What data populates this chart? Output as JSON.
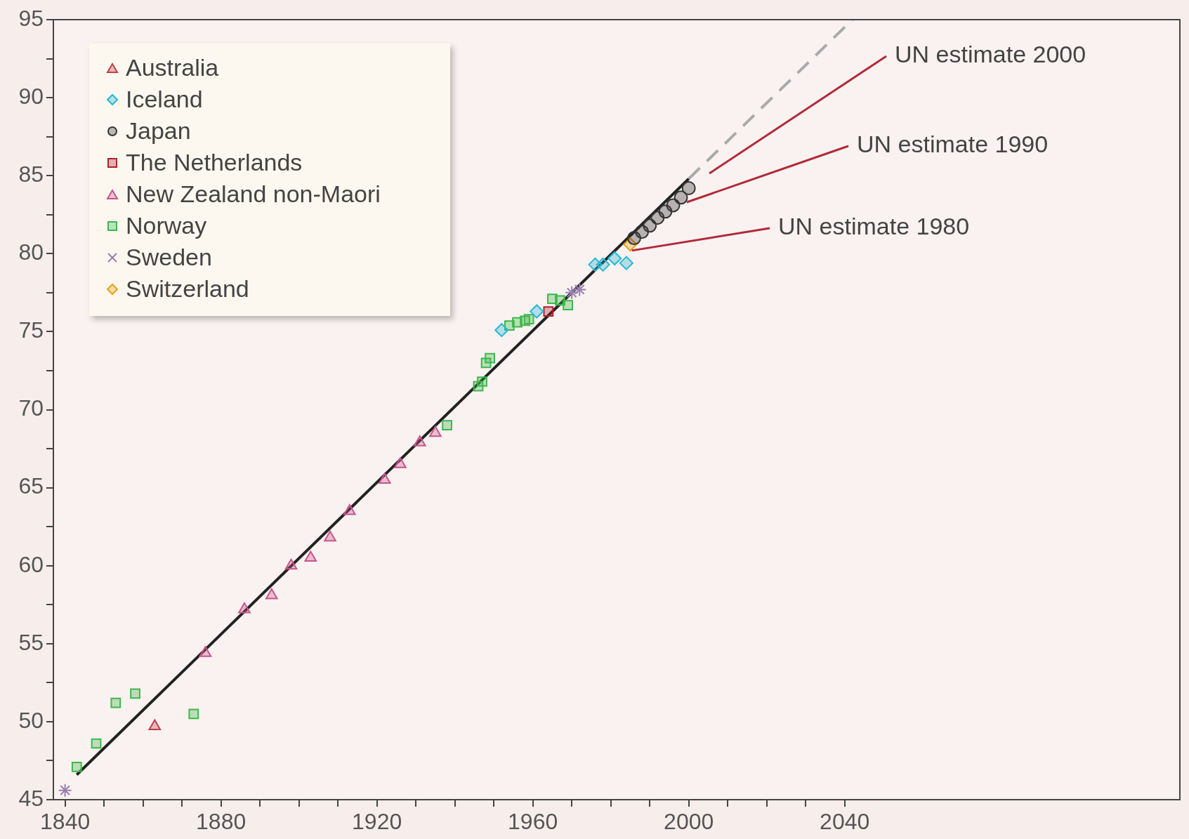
{
  "chart_data": {
    "type": "scatter",
    "xlim": [
      1837,
      2126
    ],
    "ylim": [
      45,
      95
    ],
    "xticks": [
      1840,
      {
        "value": 1850,
        "label": null
      },
      {
        "value": 1860,
        "label": null
      },
      {
        "value": 1870,
        "label": null
      },
      1880,
      {
        "value": 1890,
        "label": null
      },
      {
        "value": 1900,
        "label": null
      },
      {
        "value": 1910,
        "label": null
      },
      1920,
      {
        "value": 1930,
        "label": null
      },
      {
        "value": 1940,
        "label": null
      },
      {
        "value": 1950,
        "label": null
      },
      1960,
      {
        "value": 1970,
        "label": null
      },
      {
        "value": 1980,
        "label": null
      },
      {
        "value": 1990,
        "label": null
      },
      2000,
      {
        "value": 2010,
        "label": null
      },
      {
        "value": 2020,
        "label": null
      },
      {
        "value": 2030,
        "label": null
      },
      2040
    ],
    "yticks": [
      45,
      {
        "value": 47.5,
        "label": null
      },
      50,
      {
        "value": 52.5,
        "label": null
      },
      55,
      {
        "value": 57.5,
        "label": null
      },
      60,
      {
        "value": 62.5,
        "label": null
      },
      65,
      {
        "value": 67.5,
        "label": null
      },
      70,
      {
        "value": 72.5,
        "label": null
      },
      75,
      {
        "value": 77.5,
        "label": null
      },
      80,
      {
        "value": 82.5,
        "label": null
      },
      85,
      {
        "value": 87.5,
        "label": null
      },
      90,
      {
        "value": 92.5,
        "label": null
      },
      95
    ],
    "legend": "top left",
    "series": [
      {
        "name": "Australia",
        "type": "scatter",
        "marker": "triangle",
        "color": "#c0404a",
        "x": [
          1863
        ],
        "values": [
          49.7
        ]
      },
      {
        "name": "Iceland",
        "type": "scatter",
        "marker": "diamond",
        "color": "#29b6d6",
        "x": [
          1952,
          1961,
          1976,
          1978,
          1981,
          1984
        ],
        "values": [
          75.1,
          76.3,
          79.3,
          79.3,
          79.7,
          79.4
        ]
      },
      {
        "name": "Japan",
        "type": "scatter",
        "marker": "circle",
        "color": "#333333",
        "x": [
          1986,
          1988,
          1990,
          1992,
          1994,
          1996,
          1998,
          2000
        ],
        "values": [
          81.0,
          81.4,
          81.8,
          82.3,
          82.7,
          83.1,
          83.6,
          84.2
        ]
      },
      {
        "name": "The Netherlands",
        "type": "scatter",
        "marker": "square",
        "color": "#b0202e",
        "x": [
          1964
        ],
        "values": [
          76.3
        ]
      },
      {
        "name": "New Zealand non-Maori",
        "type": "scatter",
        "marker": "triangle",
        "color": "#c8558a",
        "x": [
          1876,
          1886,
          1893,
          1898,
          1903,
          1908,
          1913,
          1922,
          1926,
          1931,
          1935
        ],
        "values": [
          54.4,
          57.2,
          58.1,
          60.0,
          60.5,
          61.8,
          63.5,
          65.5,
          66.5,
          67.9,
          68.5
        ]
      },
      {
        "name": "Norway",
        "type": "scatter",
        "marker": "square",
        "color": "#3cb84a",
        "x": [
          1843,
          1848,
          1853,
          1858,
          1873,
          1938,
          1946,
          1947,
          1948,
          1949,
          1954,
          1956,
          1958,
          1959,
          1965,
          1967,
          1969
        ],
        "values": [
          47.1,
          48.6,
          51.2,
          51.8,
          50.5,
          69.0,
          71.5,
          71.8,
          73.0,
          73.3,
          75.4,
          75.6,
          75.7,
          75.8,
          77.1,
          77.0,
          76.7
        ]
      },
      {
        "name": "Sweden",
        "type": "scatter",
        "marker": "cross",
        "color": "#9a7fb0",
        "x": [
          1840,
          1970,
          1972
        ],
        "values": [
          45.6,
          77.5,
          77.7
        ]
      },
      {
        "name": "Switzerland",
        "type": "scatter",
        "marker": "diamond",
        "color": "#e8a21a",
        "x": [
          1985
        ],
        "values": [
          80.6
        ]
      },
      {
        "type": "line",
        "color": "#222222",
        "line_style": "solid",
        "marker": "none",
        "x": [
          1843,
          2000
        ],
        "values": [
          46.6,
          84.8
        ]
      },
      {
        "type": "line",
        "color": "#aaaaaa",
        "line_style": "dashed",
        "marker": "none",
        "x": [
          2000,
          2042
        ],
        "values": [
          84.8,
          95
        ]
      }
    ],
    "annotations": [
      "UN estimate 2000",
      {
        "text": "UN estimate 1990",
        "x": 1999.5,
        "y": 83.3
      },
      {
        "text": "UN estimate 1980",
        "x": 1985.4,
        "y": 80.2
      }
    ]
  }
}
